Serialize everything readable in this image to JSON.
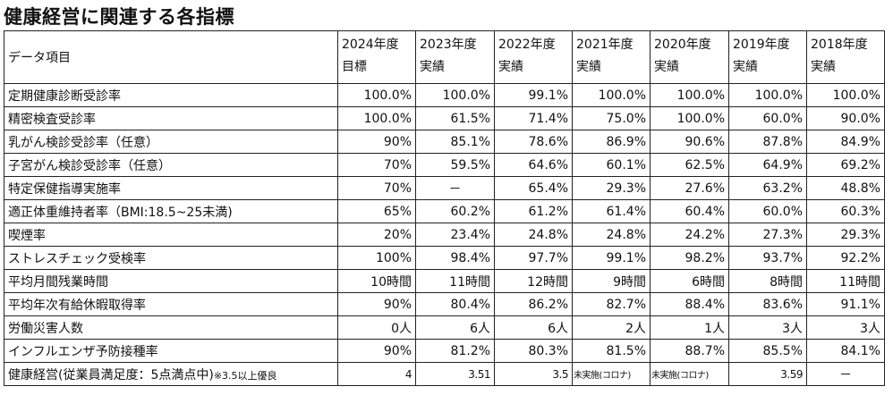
{
  "title": "健康経営に関連する各指標",
  "header": {
    "item_label": "データ項目",
    "columns": [
      {
        "year": "2024年度",
        "kind": "目標"
      },
      {
        "year": "2023年度",
        "kind": "実績"
      },
      {
        "year": "2022年度",
        "kind": "実績"
      },
      {
        "year": "2021年度",
        "kind": "実績"
      },
      {
        "year": "2020年度",
        "kind": "実績"
      },
      {
        "year": "2019年度",
        "kind": "実績"
      },
      {
        "year": "2018年度",
        "kind": "実績"
      }
    ]
  },
  "rows": [
    {
      "label": "定期健康診断受診率",
      "values": [
        "100.0%",
        "100.0%",
        "99.1%",
        "100.0%",
        "100.0%",
        "100.0%",
        "100.0%"
      ]
    },
    {
      "label": "精密検査受診率",
      "values": [
        "100.0%",
        "61.5%",
        "71.4%",
        "75.0%",
        "100.0%",
        "60.0%",
        "90.0%"
      ]
    },
    {
      "label": "乳がん検診受診率（任意）",
      "values": [
        "90%",
        "85.1%",
        "78.6%",
        "86.9%",
        "90.6%",
        "87.8%",
        "84.9%"
      ]
    },
    {
      "label": "子宮がん検診受診率（任意）",
      "values": [
        "70%",
        "59.5%",
        "64.6%",
        "60.1%",
        "62.5%",
        "64.9%",
        "69.2%"
      ]
    },
    {
      "label": "特定保健指導実施率",
      "values": [
        "70%",
        "－",
        "65.4%",
        "29.3%",
        "27.6%",
        "63.2%",
        "48.8%"
      ]
    },
    {
      "label": "適正体重維持者率（BMI:18.5~25未満)",
      "values": [
        "65%",
        "60.2%",
        "61.2%",
        "61.4%",
        "60.4%",
        "60.0%",
        "60.3%"
      ]
    },
    {
      "label": "喫煙率",
      "values": [
        "20%",
        "23.4%",
        "24.8%",
        "24.8%",
        "24.2%",
        "27.3%",
        "29.3%"
      ]
    },
    {
      "label": "ストレスチェック受検率",
      "values": [
        "100%",
        "98.4%",
        "97.7%",
        "99.1%",
        "98.2%",
        "93.7%",
        "92.2%"
      ]
    },
    {
      "label": "平均月間残業時間",
      "values": [
        "10時間",
        "11時間",
        "12時間",
        "9時間",
        "6時間",
        "8時間",
        "11時間"
      ]
    },
    {
      "label": "平均年次有給休暇取得率",
      "values": [
        "90%",
        "80.4%",
        "86.2%",
        "82.7%",
        "88.4%",
        "83.6%",
        "91.1%"
      ]
    },
    {
      "label": "労働災害人数",
      "values": [
        "0人",
        "6人",
        "6人",
        "2人",
        "1人",
        "3人",
        "3人"
      ]
    },
    {
      "label": "インフルエンザ予防接種率",
      "values": [
        "90%",
        "81.2%",
        "80.3%",
        "81.5%",
        "88.7%",
        "85.5%",
        "84.1%"
      ]
    }
  ],
  "last_row": {
    "label": "健康経営(従業員満足度：5点満点中)",
    "note": "※3.5以上優良",
    "values": [
      "4",
      "3.51",
      "3.5",
      "未実施(コロナ)",
      "未実施(コロナ)",
      "3.59",
      "－"
    ]
  }
}
